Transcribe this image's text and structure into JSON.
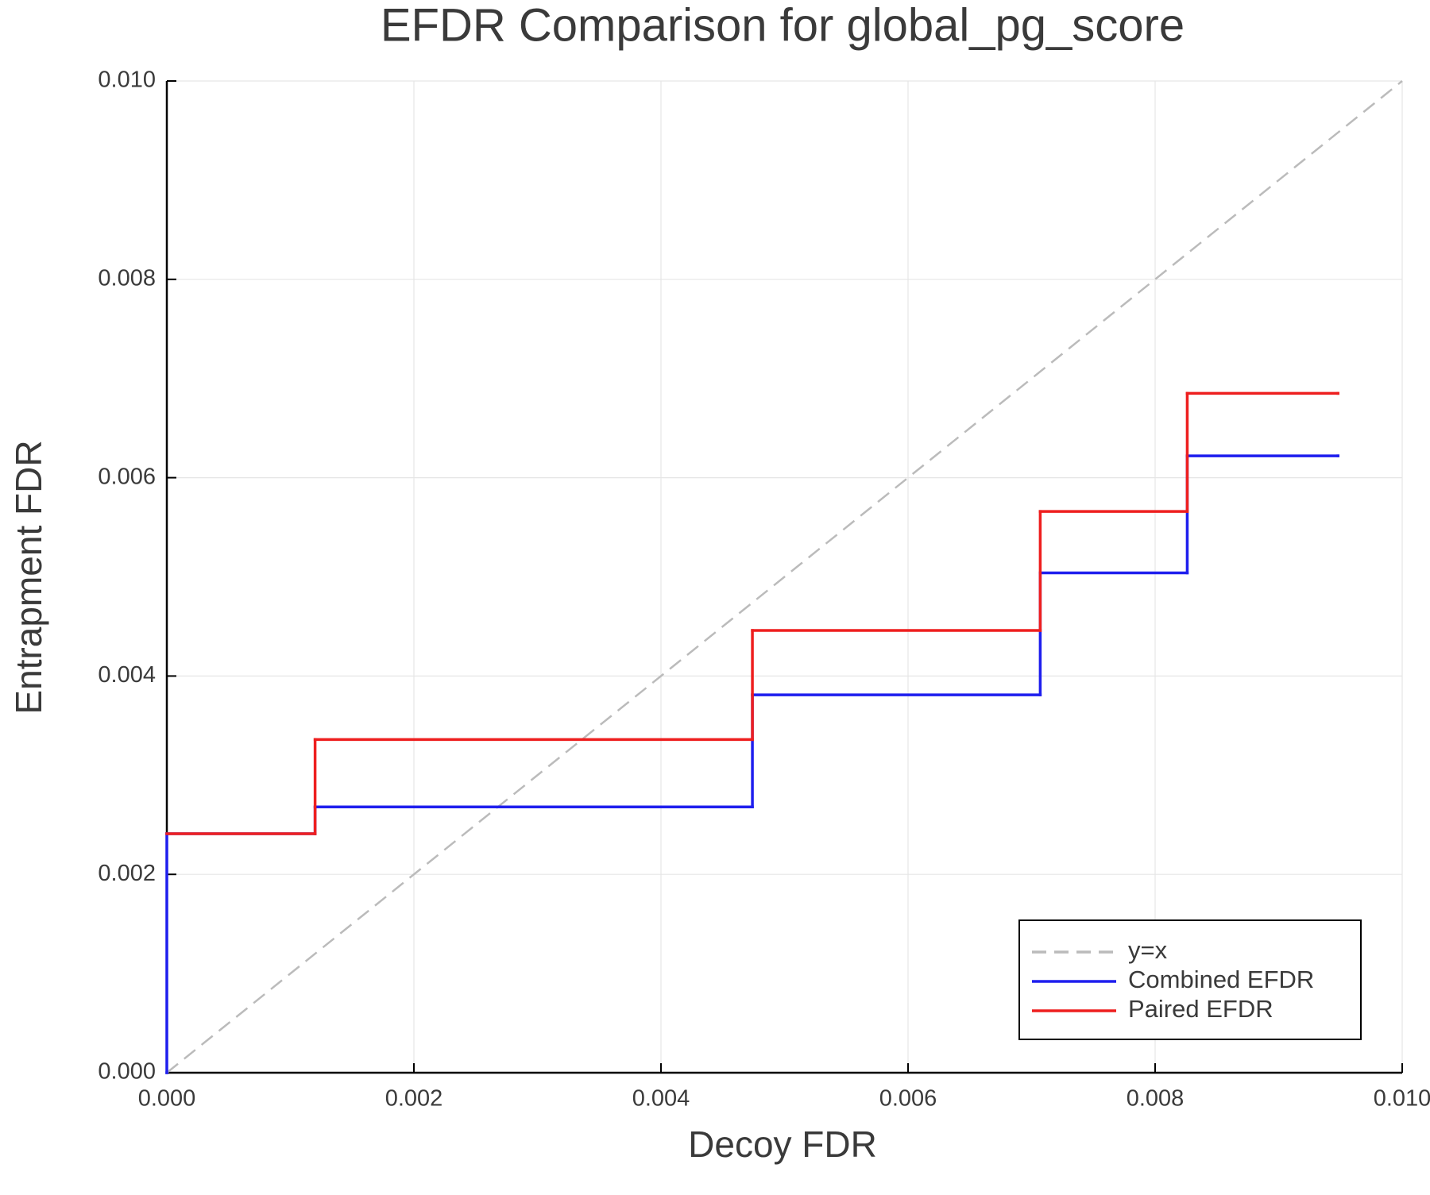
{
  "chart_data": {
    "type": "step",
    "title": "EFDR Comparison for global_pg_score",
    "xlabel": "Decoy FDR",
    "ylabel": "Entrapment FDR",
    "xlim": [
      0,
      0.01
    ],
    "ylim": [
      0,
      0.01
    ],
    "xticks": [
      {
        "value": 0,
        "label": "0.000"
      },
      {
        "value": 0.002,
        "label": "0.002"
      },
      {
        "value": 0.004,
        "label": "0.004"
      },
      {
        "value": 0.006,
        "label": "0.006"
      },
      {
        "value": 0.008,
        "label": "0.008"
      },
      {
        "value": 0.01,
        "label": "0.010"
      }
    ],
    "yticks": [
      {
        "value": 0,
        "label": "0.000"
      },
      {
        "value": 0.002,
        "label": "0.002"
      },
      {
        "value": 0.004,
        "label": "0.004"
      },
      {
        "value": 0.006,
        "label": "0.006"
      },
      {
        "value": 0.008,
        "label": "0.008"
      },
      {
        "value": 0.01,
        "label": "0.010"
      }
    ],
    "grid": true,
    "legend": "bottom right",
    "series": [
      {
        "name": "y=x",
        "color": "#bbbbbb",
        "dash": true,
        "step": false,
        "x": [
          0,
          0.01
        ],
        "values": [
          0,
          0.01
        ]
      },
      {
        "name": "Combined EFDR",
        "color": "#1f1fee",
        "dash": false,
        "step": true,
        "x": [
          0,
          0,
          0.0012,
          0.00474,
          0.00707,
          0.00826,
          0.00948
        ],
        "values": [
          0,
          0.00241,
          0.00268,
          0.00381,
          0.00504,
          0.00622,
          0.00622
        ]
      },
      {
        "name": "Paired EFDR",
        "color": "#ee1f1f",
        "dash": false,
        "step": true,
        "x": [
          0,
          0.0012,
          0.00474,
          0.00707,
          0.00826,
          0.00948
        ],
        "values": [
          0.00241,
          0.00336,
          0.00446,
          0.00566,
          0.00685,
          0.00685
        ]
      }
    ]
  }
}
